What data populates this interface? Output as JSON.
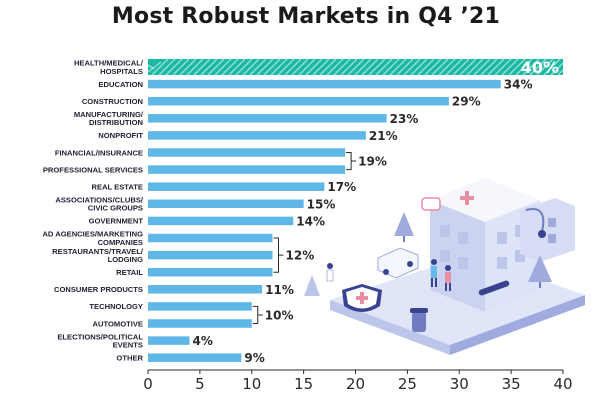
{
  "chart_data": {
    "type": "bar",
    "orientation": "horizontal",
    "title": "Most Robust Markets in Q4 ’21",
    "categories": [
      "HEALTH/MEDICAL/\nHOSPITALS",
      "EDUCATION",
      "CONSTRUCTION",
      "MANUFACTURING/\nDISTRIBUTION",
      "NONPROFIT",
      "FINANCIAL/INSURANCE",
      "PROFESSIONAL SERVICES",
      "REAL ESTATE",
      "ASSOCIATIONS/CLUBS/\nCIVIC GROUPS",
      "GOVERNMENT",
      "AD AGENCIES/MARKETING\nCOMPANIES",
      "RESTAURANTS/TRAVEL/\nLODGING",
      "RETAIL",
      "CONSUMER PRODUCTS",
      "TECHNOLOGY",
      "AUTOMOTIVE",
      "ELECTIONS/POLITICAL\nEVENTS",
      "OTHER"
    ],
    "values": [
      40,
      34,
      29,
      23,
      21,
      19,
      19,
      17,
      15,
      14,
      12,
      12,
      12,
      11,
      10,
      10,
      4,
      9
    ],
    "value_labels": [
      {
        "text": "40%",
        "rows": [
          0
        ]
      },
      {
        "text": "34%",
        "rows": [
          1
        ]
      },
      {
        "text": "29%",
        "rows": [
          2
        ]
      },
      {
        "text": "23%",
        "rows": [
          3
        ]
      },
      {
        "text": "21%",
        "rows": [
          4
        ]
      },
      {
        "text": "19%",
        "rows": [
          5,
          6
        ]
      },
      {
        "text": "17%",
        "rows": [
          7
        ]
      },
      {
        "text": "15%",
        "rows": [
          8
        ]
      },
      {
        "text": "14%",
        "rows": [
          9
        ]
      },
      {
        "text": "12%",
        "rows": [
          10,
          11,
          12
        ]
      },
      {
        "text": "11%",
        "rows": [
          13
        ]
      },
      {
        "text": "10%",
        "rows": [
          14,
          15
        ]
      },
      {
        "text": "4%",
        "rows": [
          16
        ]
      },
      {
        "text": "9%",
        "rows": [
          17
        ]
      }
    ],
    "highlight_index": 0,
    "xlim": [
      0,
      40
    ],
    "xticks": [
      0,
      5,
      10,
      15,
      20,
      25,
      30,
      35,
      40
    ],
    "grid": false,
    "colors": {
      "bar": "#5fb7e8",
      "highlight": "#1ab9a4",
      "bracket": "#2a2a2a",
      "axis": "#2a2a2a",
      "illustration_main": "#b9c3ea",
      "illustration_dark": "#2e3b8c"
    }
  }
}
